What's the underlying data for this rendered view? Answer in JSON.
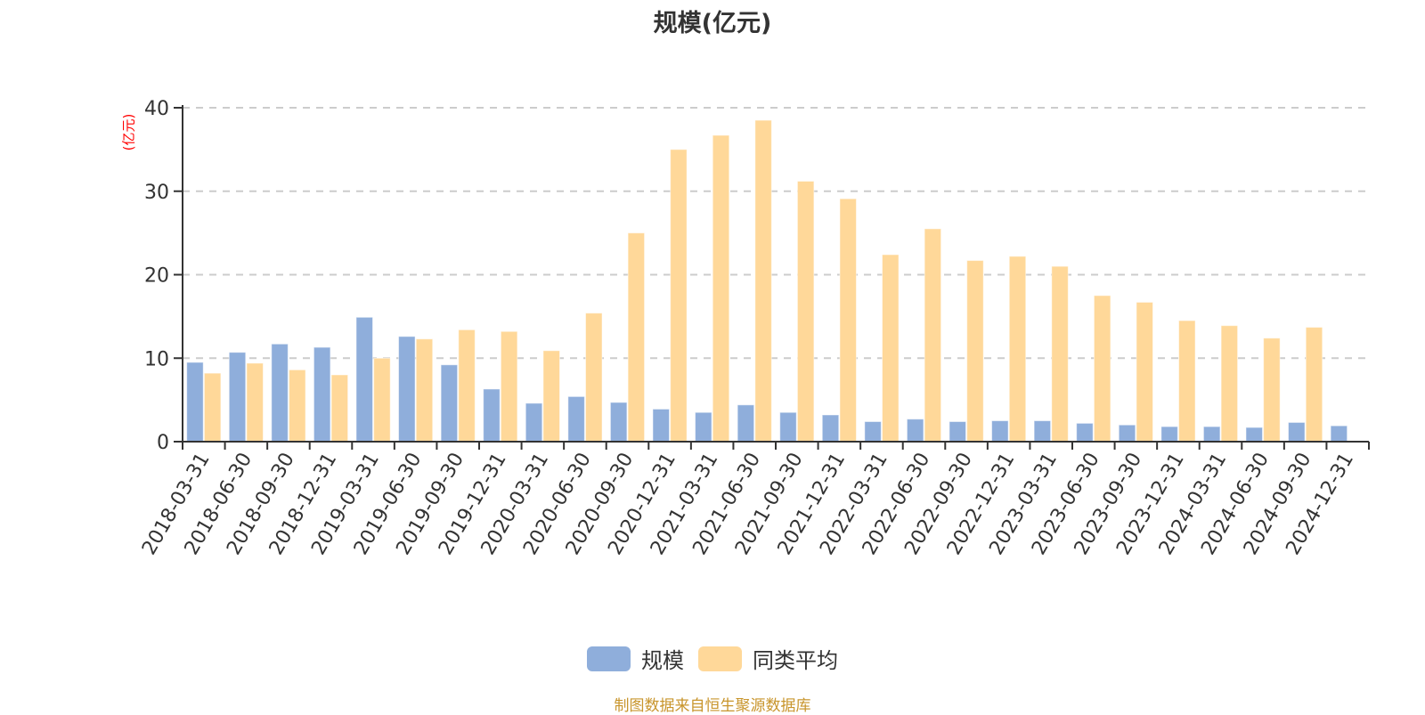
{
  "title": "规模(亿元)",
  "y_unit_label": "(亿元)",
  "legend": [
    {
      "label": "规模",
      "color": "#8faedb"
    },
    {
      "label": "同类平均",
      "color": "#ffd899"
    }
  ],
  "footer": "制图数据来自恒生聚源数据库",
  "colors": {
    "axis": "#333333",
    "grid": "#cccccc",
    "tick_text": "#333333",
    "unit_label": "#ff0000",
    "footer": "#c8952c"
  },
  "chart_data": {
    "type": "bar",
    "title": "规模(亿元)",
    "xlabel": "",
    "ylabel": "(亿元)",
    "ylim": [
      0,
      40
    ],
    "yticks": [
      0,
      10,
      20,
      30,
      40
    ],
    "grid": true,
    "legend_position": "bottom",
    "categories": [
      "2018-03-31",
      "2018-06-30",
      "2018-09-30",
      "2018-12-31",
      "2019-03-31",
      "2019-06-30",
      "2019-09-30",
      "2019-12-31",
      "2020-03-31",
      "2020-06-30",
      "2020-09-30",
      "2020-12-31",
      "2021-03-31",
      "2021-06-30",
      "2021-09-30",
      "2021-12-31",
      "2022-03-31",
      "2022-06-30",
      "2022-09-30",
      "2022-12-31",
      "2023-03-31",
      "2023-06-30",
      "2023-09-30",
      "2023-12-31",
      "2024-03-31",
      "2024-06-30",
      "2024-09-30",
      "2024-12-31"
    ],
    "series": [
      {
        "name": "规模",
        "color": "#8faedb",
        "values": [
          9.5,
          10.7,
          11.7,
          11.3,
          14.9,
          12.6,
          9.2,
          6.3,
          4.6,
          5.4,
          4.7,
          3.9,
          3.5,
          4.4,
          3.5,
          3.2,
          2.4,
          2.7,
          2.4,
          2.5,
          2.5,
          2.2,
          2.0,
          1.8,
          1.8,
          1.7,
          2.3,
          1.9
        ]
      },
      {
        "name": "同类平均",
        "color": "#ffd899",
        "values": [
          8.2,
          9.4,
          8.6,
          8.0,
          10.0,
          12.3,
          13.4,
          13.2,
          10.9,
          15.4,
          25.0,
          35.0,
          36.7,
          38.5,
          31.2,
          29.1,
          22.4,
          25.5,
          21.7,
          22.2,
          21.0,
          17.5,
          16.7,
          14.5,
          13.9,
          12.4,
          13.7,
          null
        ]
      }
    ]
  }
}
